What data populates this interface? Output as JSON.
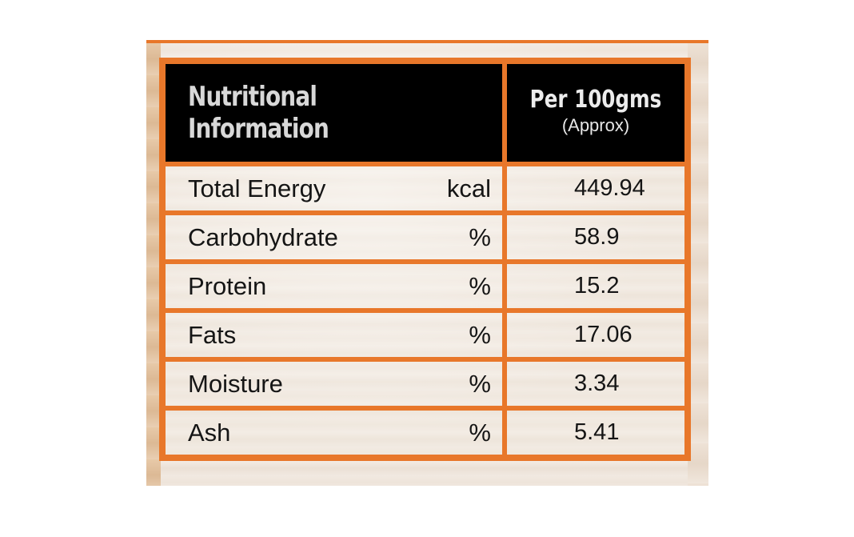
{
  "table": {
    "header": {
      "title": "Nutritional Information",
      "per_line1": "Per 100gms",
      "per_line2": "(Approx)"
    },
    "rows": [
      {
        "name": "Total Energy",
        "unit": "kcal",
        "value": "449.94"
      },
      {
        "name": "Carbohydrate",
        "unit": "%",
        "value": "58.9"
      },
      {
        "name": "Protein",
        "unit": "%",
        "value": "15.2"
      },
      {
        "name": "Fats",
        "unit": "%",
        "value": "17.06"
      },
      {
        "name": "Moisture",
        "unit": "%",
        "value": "3.34"
      },
      {
        "name": "Ash",
        "unit": "%",
        "value": "5.41"
      }
    ]
  },
  "colors": {
    "border": "#e8772a",
    "header_bg": "#000000",
    "header_text": "#d8d8d8",
    "body_text": "#151515"
  }
}
